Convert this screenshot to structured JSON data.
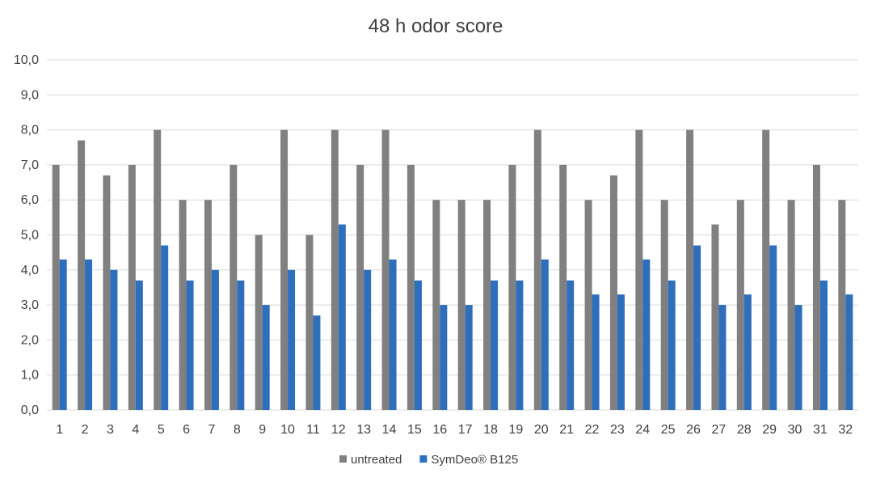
{
  "chart_data": {
    "type": "bar",
    "title": "48 h odor score",
    "xlabel": "",
    "ylabel": "",
    "ylim": [
      0,
      10
    ],
    "ytick_labels": [
      "0,0",
      "1,0",
      "2,0",
      "3,0",
      "4,0",
      "5,0",
      "6,0",
      "7,0",
      "8,0",
      "9,0",
      "10,0"
    ],
    "categories": [
      "1",
      "2",
      "3",
      "4",
      "5",
      "6",
      "7",
      "8",
      "9",
      "10",
      "11",
      "12",
      "13",
      "14",
      "15",
      "16",
      "17",
      "18",
      "19",
      "20",
      "21",
      "22",
      "23",
      "24",
      "25",
      "26",
      "27",
      "28",
      "29",
      "30",
      "31",
      "32"
    ],
    "series": [
      {
        "name": "untreated",
        "color": "#808080",
        "values": [
          7.0,
          7.7,
          6.7,
          7.0,
          8.0,
          6.0,
          6.0,
          7.0,
          5.0,
          8.0,
          5.0,
          8.0,
          7.0,
          8.0,
          7.0,
          6.0,
          6.0,
          6.0,
          7.0,
          8.0,
          7.0,
          6.0,
          6.7,
          8.0,
          6.0,
          8.0,
          5.3,
          6.0,
          8.0,
          6.0,
          7.0,
          6.0
        ]
      },
      {
        "name": "SymDeo® B125",
        "color": "#2e6fbd",
        "values": [
          4.3,
          4.3,
          4.0,
          3.7,
          4.7,
          3.7,
          4.0,
          3.7,
          3.0,
          4.0,
          2.7,
          5.3,
          4.0,
          4.3,
          3.7,
          3.0,
          3.0,
          3.7,
          3.7,
          4.3,
          3.7,
          3.3,
          3.3,
          4.3,
          3.7,
          4.7,
          3.0,
          3.3,
          4.7,
          3.0,
          3.7,
          3.3
        ]
      }
    ],
    "grid": true,
    "legend_position": "bottom"
  }
}
